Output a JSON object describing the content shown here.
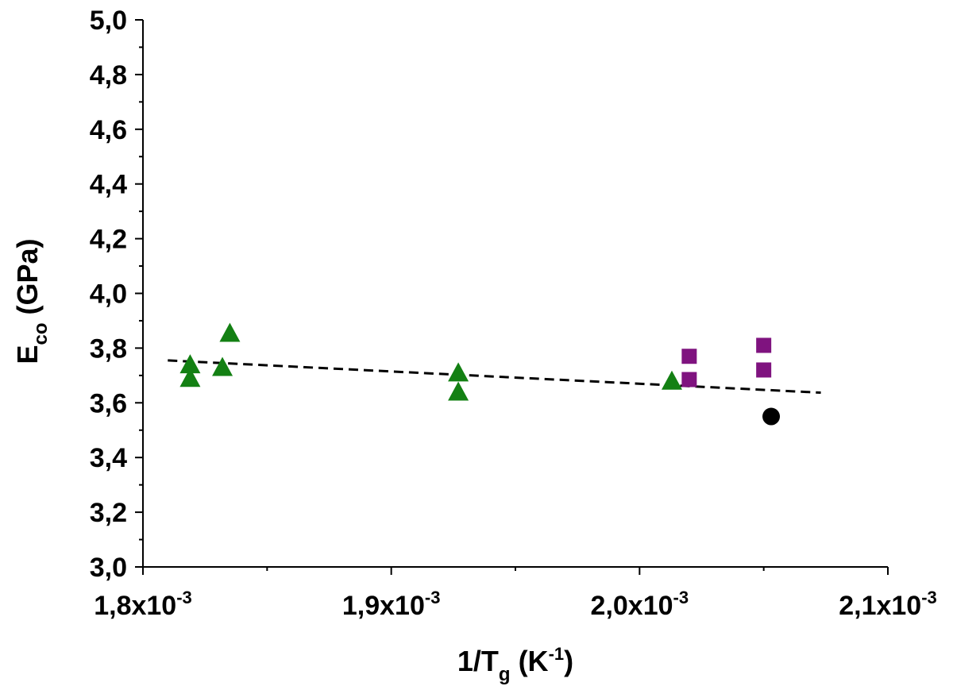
{
  "chart_data": {
    "type": "scatter",
    "title": "",
    "xlabel": {
      "main": "1/T",
      "sub": "g",
      "unit_open": " (K",
      "unit_sup": "-1",
      "unit_close": ")"
    },
    "ylabel": {
      "main": "E",
      "sub": "co",
      "unit": " (GPa)"
    },
    "xlim": [
      0.0018,
      0.0021
    ],
    "ylim": [
      3.0,
      5.0
    ],
    "x_ticks": [
      {
        "value": 0.0018,
        "mantissa": "1,8x10",
        "exp": "-3"
      },
      {
        "value": 0.0019,
        "mantissa": "1,9x10",
        "exp": "-3"
      },
      {
        "value": 0.002,
        "mantissa": "2,0x10",
        "exp": "-3"
      },
      {
        "value": 0.0021,
        "mantissa": "2,1x10",
        "exp": "-3"
      }
    ],
    "x_minor_ticks": [
      0.00185,
      0.00195,
      0.00205
    ],
    "y_ticks": [
      {
        "value": 3.0,
        "label": "3,0"
      },
      {
        "value": 3.2,
        "label": "3,2"
      },
      {
        "value": 3.4,
        "label": "3,4"
      },
      {
        "value": 3.6,
        "label": "3,6"
      },
      {
        "value": 3.8,
        "label": "3,8"
      },
      {
        "value": 4.0,
        "label": "4,0"
      },
      {
        "value": 4.2,
        "label": "4,2"
      },
      {
        "value": 4.4,
        "label": "4,4"
      },
      {
        "value": 4.6,
        "label": "4,6"
      },
      {
        "value": 4.8,
        "label": "4,8"
      },
      {
        "value": 5.0,
        "label": "5,0"
      }
    ],
    "y_minor_ticks": [
      3.1,
      3.3,
      3.5,
      3.7,
      3.9,
      4.1,
      4.3,
      4.5,
      4.7,
      4.9
    ],
    "series": [
      {
        "name": "triangles",
        "marker": "triangle",
        "color": "#138013",
        "points": [
          {
            "x": 0.001819,
            "y": 3.74
          },
          {
            "x": 0.001819,
            "y": 3.69
          },
          {
            "x": 0.001832,
            "y": 3.73
          },
          {
            "x": 0.001835,
            "y": 3.855
          },
          {
            "x": 0.001927,
            "y": 3.71
          },
          {
            "x": 0.001927,
            "y": 3.64
          },
          {
            "x": 0.002013,
            "y": 3.68
          }
        ]
      },
      {
        "name": "squares",
        "marker": "square",
        "color": "#7f137f",
        "points": [
          {
            "x": 0.00202,
            "y": 3.77
          },
          {
            "x": 0.00202,
            "y": 3.685
          },
          {
            "x": 0.00205,
            "y": 3.81
          },
          {
            "x": 0.00205,
            "y": 3.72
          }
        ]
      },
      {
        "name": "circle",
        "marker": "circle",
        "color": "#000000",
        "points": [
          {
            "x": 0.002053,
            "y": 3.55
          }
        ]
      }
    ],
    "fit_line": {
      "style": "dashed",
      "color": "#000000",
      "points": [
        {
          "x": 0.00181,
          "y": 3.755
        },
        {
          "x": 0.002073,
          "y": 3.637
        }
      ]
    }
  }
}
